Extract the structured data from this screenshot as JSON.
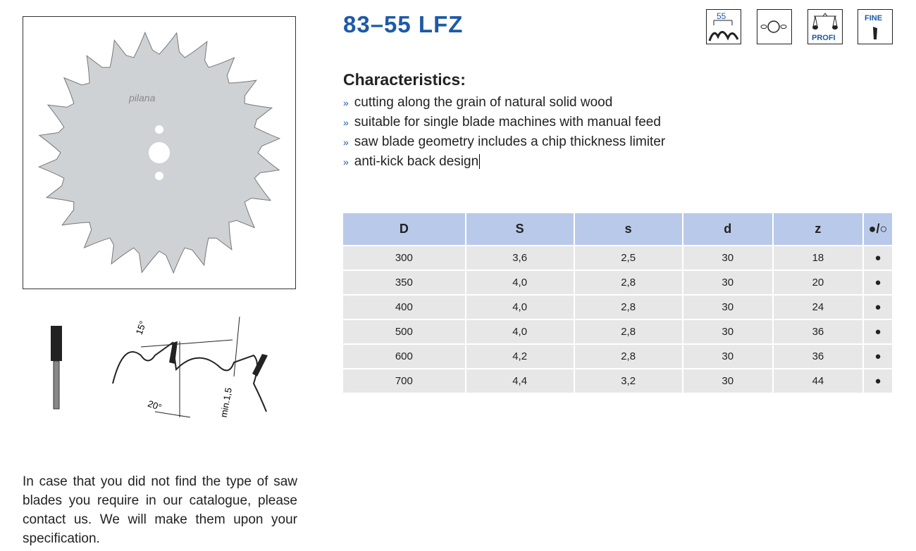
{
  "product": {
    "title": "83–55 LFZ",
    "logo": "pilana"
  },
  "icons": [
    {
      "name": "tooth-55-icon",
      "label": "55"
    },
    {
      "name": "bore-holes-icon"
    },
    {
      "name": "profi-scale-icon",
      "label": "PROFI"
    },
    {
      "name": "fine-tooth-icon",
      "label": "FINE"
    }
  ],
  "characteristics": {
    "heading": "Characteristics:",
    "items": [
      "cutting along the grain of natural solid wood",
      "suitable for single blade machines with manual feed",
      "saw blade geometry includes a chip thickness limiter",
      "anti-kick back design"
    ]
  },
  "diagram": {
    "angle1": "15°",
    "angle2": "20°",
    "limiter": "min.1,5"
  },
  "table": {
    "headers": [
      "D",
      "S",
      "s",
      "d",
      "z",
      "●/○"
    ],
    "rows": [
      [
        "300",
        "3,6",
        "2,5",
        "30",
        "18",
        "●"
      ],
      [
        "350",
        "4,0",
        "2,8",
        "30",
        "20",
        "●"
      ],
      [
        "400",
        "4,0",
        "2,8",
        "30",
        "24",
        "●"
      ],
      [
        "500",
        "4,0",
        "2,8",
        "30",
        "36",
        "●"
      ],
      [
        "600",
        "4,2",
        "2,8",
        "30",
        "36",
        "●"
      ],
      [
        "700",
        "4,4",
        "3,2",
        "30",
        "44",
        "●"
      ]
    ]
  },
  "note": "In case that you did not find the type of saw blades you require in our catalogue, please contact us. We will make them upon your specification.",
  "colors": {
    "accent": "#1d5aa6",
    "header_bg": "#b9c9e9",
    "row_bg": "#e7e7e7"
  }
}
